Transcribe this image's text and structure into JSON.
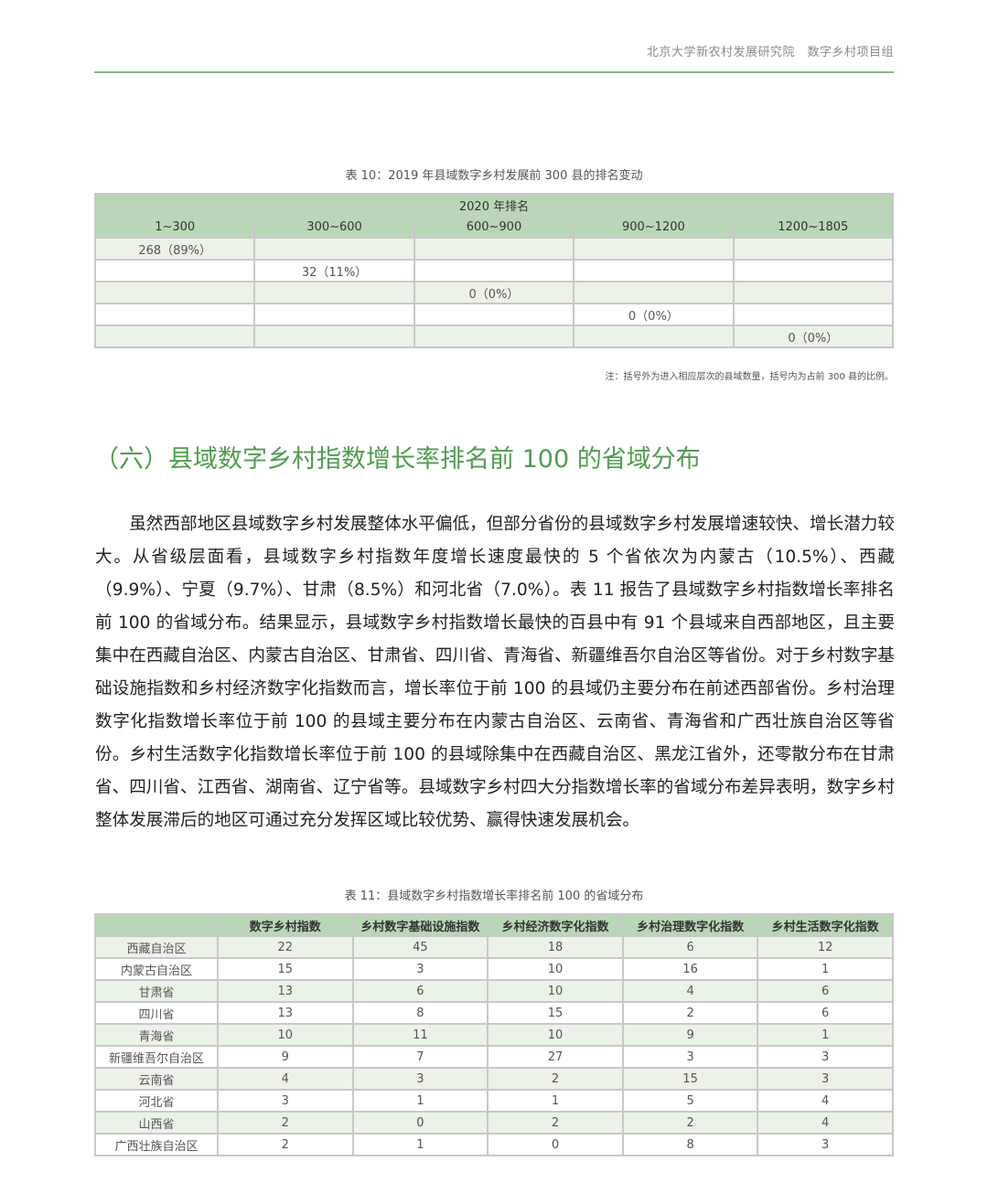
{
  "header": {
    "org": "北京大学新农村发展研究院　数字乡村项目组"
  },
  "table10": {
    "caption": "表 10：2019 年县域数字乡村发展前 300 县的排名变动",
    "super_header": "2020 年排名",
    "columns": [
      "1~300",
      "300~600",
      "600~900",
      "900~1200",
      "1200~1805"
    ],
    "rows": [
      [
        "268（89%）",
        "",
        "",
        "",
        ""
      ],
      [
        "",
        "32（11%）",
        "",
        "",
        ""
      ],
      [
        "",
        "",
        "0（0%）",
        "",
        ""
      ],
      [
        "",
        "",
        "",
        "0（0%）",
        ""
      ],
      [
        "",
        "",
        "",
        "",
        "0（0%）"
      ]
    ],
    "note": "注：括号外为进入相应层次的县域数量，括号内为占前 300 县的比例。"
  },
  "section_title": "（六）县域数字乡村指数增长率排名前 100 的省域分布",
  "paragraph": "虽然西部地区县域数字乡村发展整体水平偏低，但部分省份的县域数字乡村发展增速较快、增长潜力较大。从省级层面看，县域数字乡村指数年度增长速度最快的 5 个省依次为内蒙古（10.5%）、西藏（9.9%）、宁夏（9.7%）、甘肃（8.5%）和河北省（7.0%）。表 11 报告了县域数字乡村指数增长率排名前 100 的省域分布。结果显示，县域数字乡村指数增长最快的百县中有 91 个县域来自西部地区，且主要集中在西藏自治区、内蒙古自治区、甘肃省、四川省、青海省、新疆维吾尔自治区等省份。对于乡村数字基础设施指数和乡村经济数字化指数而言，增长率位于前 100 的县域仍主要分布在前述西部省份。乡村治理数字化指数增长率位于前 100 的县域主要分布在内蒙古自治区、云南省、青海省和广西壮族自治区等省份。乡村生活数字化指数增长率位于前 100 的县域除集中在西藏自治区、黑龙江省外，还零散分布在甘肃省、四川省、江西省、湖南省、辽宁省等。县域数字乡村四大分指数增长率的省域分布差异表明，数字乡村整体发展滞后的地区可通过充分发挥区域比较优势、赢得快速发展机会。",
  "table11": {
    "caption": "表 11：县域数字乡村指数增长率排名前 100 的省域分布",
    "columns": [
      "",
      "数字乡村指数",
      "乡村数字基础设施指数",
      "乡村经济数字化指数",
      "乡村治理数字化指数",
      "乡村生活数字化指数"
    ],
    "rows": [
      [
        "西藏自治区",
        "22",
        "45",
        "18",
        "6",
        "12"
      ],
      [
        "内蒙古自治区",
        "15",
        "3",
        "10",
        "16",
        "1"
      ],
      [
        "甘肃省",
        "13",
        "6",
        "10",
        "4",
        "6"
      ],
      [
        "四川省",
        "13",
        "8",
        "15",
        "2",
        "6"
      ],
      [
        "青海省",
        "10",
        "11",
        "10",
        "9",
        "1"
      ],
      [
        "新疆维吾尔自治区",
        "9",
        "7",
        "27",
        "3",
        "3"
      ],
      [
        "云南省",
        "4",
        "3",
        "2",
        "15",
        "3"
      ],
      [
        "河北省",
        "3",
        "1",
        "1",
        "5",
        "4"
      ],
      [
        "山西省",
        "2",
        "0",
        "2",
        "2",
        "4"
      ],
      [
        "广西壮族自治区",
        "2",
        "1",
        "0",
        "8",
        "3"
      ]
    ]
  },
  "colors": {
    "accent_green": "#4f9d4f",
    "header_fill": "#b9d7b7",
    "row_alt": "#ebf3e8"
  }
}
